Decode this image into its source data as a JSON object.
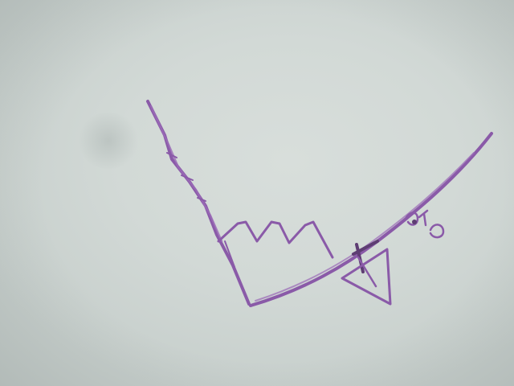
{
  "image": {
    "background_color": "#cfd6d3",
    "ink_color": "#8a5aa8",
    "ink_dark_color": "#5e3d73"
  }
}
